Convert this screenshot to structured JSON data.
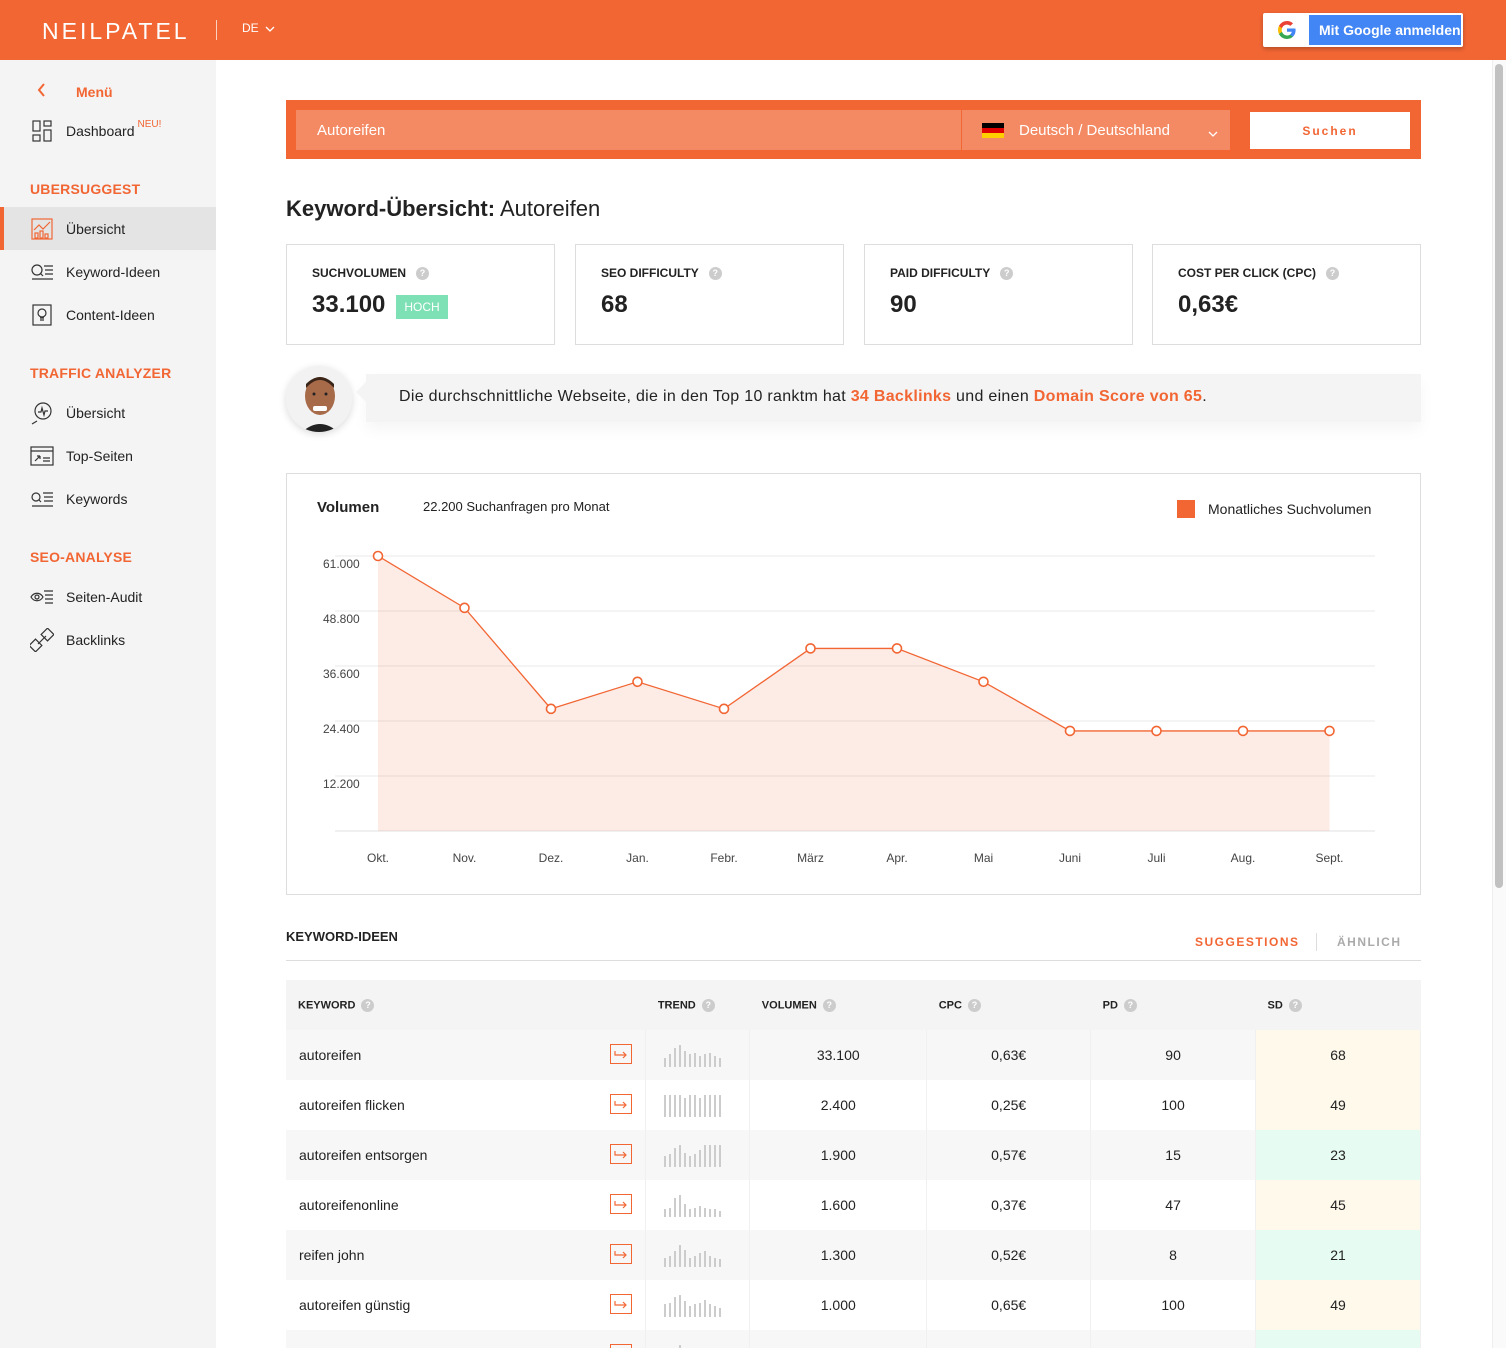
{
  "header": {
    "logo": "NEILPATEL",
    "language": "DE",
    "google_button": "Mit Google anmelden"
  },
  "sidebar": {
    "menu_label": "Menü",
    "dashboard": {
      "label": "Dashboard",
      "badge": "NEU!"
    },
    "sections": [
      {
        "title": "UBERSUGGEST",
        "items": [
          "Übersicht",
          "Keyword-Ideen",
          "Content-Ideen"
        ]
      },
      {
        "title": "TRAFFIC ANALYZER",
        "items": [
          "Übersicht",
          "Top-Seiten",
          "Keywords"
        ]
      },
      {
        "title": "SEO-ANALYSE",
        "items": [
          "Seiten-Audit",
          "Backlinks"
        ]
      }
    ]
  },
  "search": {
    "value": "Autoreifen",
    "language": "Deutsch / Deutschland",
    "button": "Suchen"
  },
  "page": {
    "title_prefix": "Keyword-Übersicht:",
    "title_keyword": "Autoreifen"
  },
  "stats": [
    {
      "label": "SUCHVOLUMEN",
      "value": "33.100",
      "badge": "HOCH"
    },
    {
      "label": "SEO DIFFICULTY",
      "value": "68"
    },
    {
      "label": "PAID DIFFICULTY",
      "value": "90"
    },
    {
      "label": "COST PER CLICK (CPC)",
      "value": "0,63€"
    }
  ],
  "insight": {
    "text_a": "Die durchschnittliche Webseite, die in den Top 10 ranktm hat ",
    "hl_a": "34 Backlinks",
    "text_b": " und einen ",
    "hl_b": "Domain Score von 65",
    "text_c": "."
  },
  "chart": {
    "title": "Volumen",
    "subtitle": "22.200 Suchanfragen pro Monat",
    "legend": "Monatliches Suchvolumen"
  },
  "chart_data": {
    "type": "area",
    "categories": [
      "Okt.",
      "Nov.",
      "Dez.",
      "Jan.",
      "Febr.",
      "März",
      "Apr.",
      "Mai",
      "Juni",
      "Juli",
      "Aug.",
      "Sept."
    ],
    "series": [
      {
        "name": "Monatliches Suchvolumen",
        "values": [
          61000,
          49500,
          27100,
          33100,
          27100,
          40500,
          40500,
          33100,
          22200,
          22200,
          22200,
          22200
        ]
      }
    ],
    "yticks": [
      "61.000",
      "48.800",
      "36.600",
      "24.400",
      "12.200"
    ],
    "ytick_values": [
      61000,
      48800,
      36600,
      24400,
      12200
    ],
    "ylim": [
      0,
      61000
    ],
    "color": "#f26634",
    "grid": true,
    "legend_position": "top-right"
  },
  "keyword_ideas": {
    "title": "KEYWORD-IDEEN",
    "tab_active": "SUGGESTIONS",
    "tab_inactive": "ÄHNLICH",
    "columns": [
      "KEYWORD",
      "TREND",
      "VOLUMEN",
      "CPC",
      "PD",
      "SD"
    ],
    "rows": [
      {
        "keyword": "autoreifen",
        "volume": "33.100",
        "cpc": "0,63€",
        "pd": "90",
        "sd": "68",
        "sd_level": "y",
        "trend": [
          6,
          8,
          12,
          14,
          10,
          8,
          9,
          7,
          8,
          9,
          7,
          6
        ]
      },
      {
        "keyword": "autoreifen flicken",
        "volume": "2.400",
        "cpc": "0,25€",
        "pd": "100",
        "sd": "49",
        "sd_level": "y",
        "trend": [
          14,
          14,
          14,
          14,
          12,
          14,
          14,
          12,
          14,
          14,
          14,
          14
        ]
      },
      {
        "keyword": "autoreifen entsorgen",
        "volume": "1.900",
        "cpc": "0,57€",
        "pd": "15",
        "sd": "23",
        "sd_level": "g",
        "trend": [
          7,
          8,
          12,
          14,
          9,
          7,
          8,
          11,
          14,
          14,
          14,
          14
        ]
      },
      {
        "keyword": "autoreifenonline",
        "volume": "1.600",
        "cpc": "0,37€",
        "pd": "47",
        "sd": "45",
        "sd_level": "y",
        "trend": [
          5,
          6,
          12,
          14,
          8,
          5,
          6,
          7,
          6,
          5,
          5,
          4
        ]
      },
      {
        "keyword": "reifen john",
        "volume": "1.300",
        "cpc": "0,52€",
        "pd": "8",
        "sd": "21",
        "sd_level": "g",
        "trend": [
          6,
          7,
          10,
          14,
          11,
          6,
          7,
          9,
          10,
          7,
          6,
          5
        ]
      },
      {
        "keyword": "autoreifen günstig",
        "volume": "1.000",
        "cpc": "0,65€",
        "pd": "100",
        "sd": "49",
        "sd_level": "y",
        "trend": [
          8,
          9,
          13,
          14,
          10,
          7,
          8,
          9,
          11,
          8,
          7,
          6
        ]
      },
      {
        "keyword": "",
        "volume": "",
        "cpc": "",
        "pd": "",
        "sd": "",
        "sd_level": "g",
        "trend": [
          6,
          7,
          10,
          14,
          9,
          6,
          7,
          8,
          7,
          6,
          5,
          5
        ]
      }
    ]
  }
}
